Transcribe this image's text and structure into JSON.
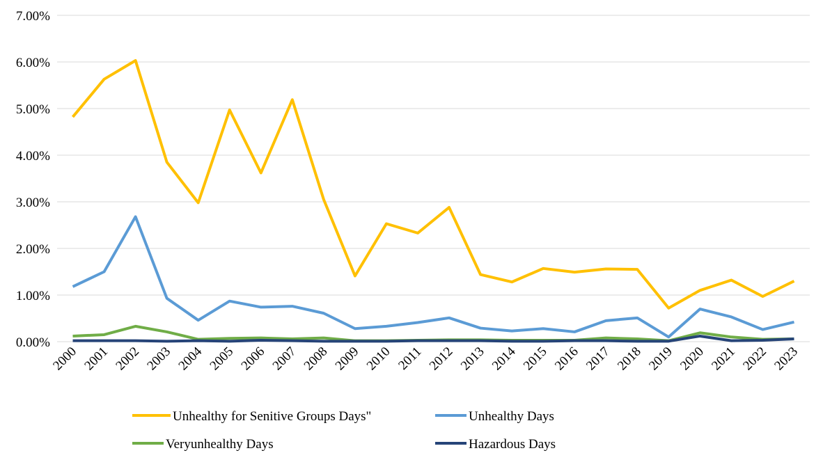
{
  "chart_data": {
    "type": "line",
    "categories": [
      "2000",
      "2001",
      "2002",
      "2003",
      "2004",
      "2005",
      "2006",
      "2007",
      "2008",
      "2009",
      "2010",
      "2011",
      "2012",
      "2013",
      "2014",
      "2015",
      "2016",
      "2017",
      "2018",
      "2019",
      "2020",
      "2021",
      "2022",
      "2023"
    ],
    "series": [
      {
        "name": "Unhealthy for Senitive Groups Days\"",
        "color": "#FFC000",
        "values": [
          4.82,
          5.63,
          6.03,
          3.85,
          2.98,
          4.97,
          3.62,
          5.19,
          3.05,
          1.41,
          2.53,
          2.33,
          2.88,
          1.44,
          1.28,
          1.57,
          1.49,
          1.56,
          1.55,
          0.72,
          1.1,
          1.32,
          0.97,
          1.3
        ]
      },
      {
        "name": "Unhealthy Days",
        "color": "#5B9BD5",
        "values": [
          1.18,
          1.5,
          2.68,
          0.93,
          0.46,
          0.87,
          0.74,
          0.76,
          0.61,
          0.28,
          0.33,
          0.41,
          0.51,
          0.29,
          0.23,
          0.28,
          0.21,
          0.45,
          0.51,
          0.1,
          0.7,
          0.53,
          0.26,
          0.42
        ]
      },
      {
        "name": "Veryunhealthy Days",
        "color": "#70AD47",
        "values": [
          0.12,
          0.15,
          0.33,
          0.21,
          0.05,
          0.07,
          0.08,
          0.06,
          0.08,
          0.02,
          0.02,
          0.03,
          0.04,
          0.04,
          0.03,
          0.03,
          0.03,
          0.08,
          0.06,
          0.02,
          0.19,
          0.1,
          0.05,
          0.06
        ]
      },
      {
        "name": "Hazardous Days",
        "color": "#264478",
        "values": [
          0.02,
          0.02,
          0.02,
          0.01,
          0.02,
          0.01,
          0.03,
          0.02,
          0.01,
          0.01,
          0.01,
          0.02,
          0.02,
          0.02,
          0.01,
          0.01,
          0.02,
          0.02,
          0.01,
          0.01,
          0.12,
          0.02,
          0.03,
          0.06
        ]
      }
    ],
    "ylim": [
      0,
      7
    ],
    "yticks": [
      {
        "value": 0,
        "label": "0.00%"
      },
      {
        "value": 1,
        "label": "1.00%"
      },
      {
        "value": 2,
        "label": "2.00%"
      },
      {
        "value": 3,
        "label": "3.00%"
      },
      {
        "value": 4,
        "label": "4.00%"
      },
      {
        "value": 5,
        "label": "5.00%"
      },
      {
        "value": 6,
        "label": "6.00%"
      },
      {
        "value": 7,
        "label": "7.00%"
      }
    ],
    "grid": true
  }
}
